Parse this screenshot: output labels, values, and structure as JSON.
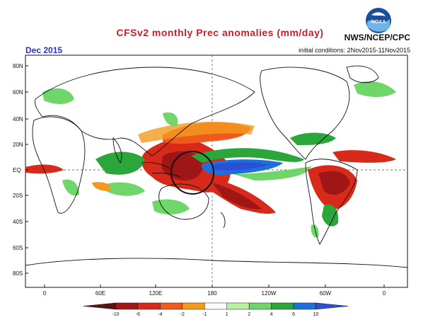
{
  "header": {
    "title": "CFSv2 monthly Prec anomalies (mm/day)",
    "agency": "NWS/NCEP/CPC",
    "period": "Dec 2015",
    "initial_conditions": "initial conditions: 2Nov2015-11Nov2015"
  },
  "logo": {
    "text": "NOAA"
  },
  "lat_ticks": [
    "80N",
    "60N",
    "40N",
    "20N",
    "EQ",
    "20S",
    "40S",
    "60S",
    "80S"
  ],
  "lon_ticks": [
    "0",
    "60E",
    "120E",
    "180",
    "120W",
    "60W",
    "0"
  ],
  "colorbar": {
    "labels": [
      "-10",
      "-6",
      "-4",
      "-2",
      "-1",
      "1",
      "2",
      "4",
      "6",
      "10"
    ],
    "colors": [
      "#5a1212",
      "#a01515",
      "#d82a1a",
      "#f05a1e",
      "#f39a1e",
      "#ffffff",
      "#b8f0a0",
      "#6fd66a",
      "#2aa63a",
      "#1e6fd8",
      "#2b4fd6"
    ]
  },
  "annotation": {
    "shape": "circle",
    "location": "western Pacific"
  }
}
